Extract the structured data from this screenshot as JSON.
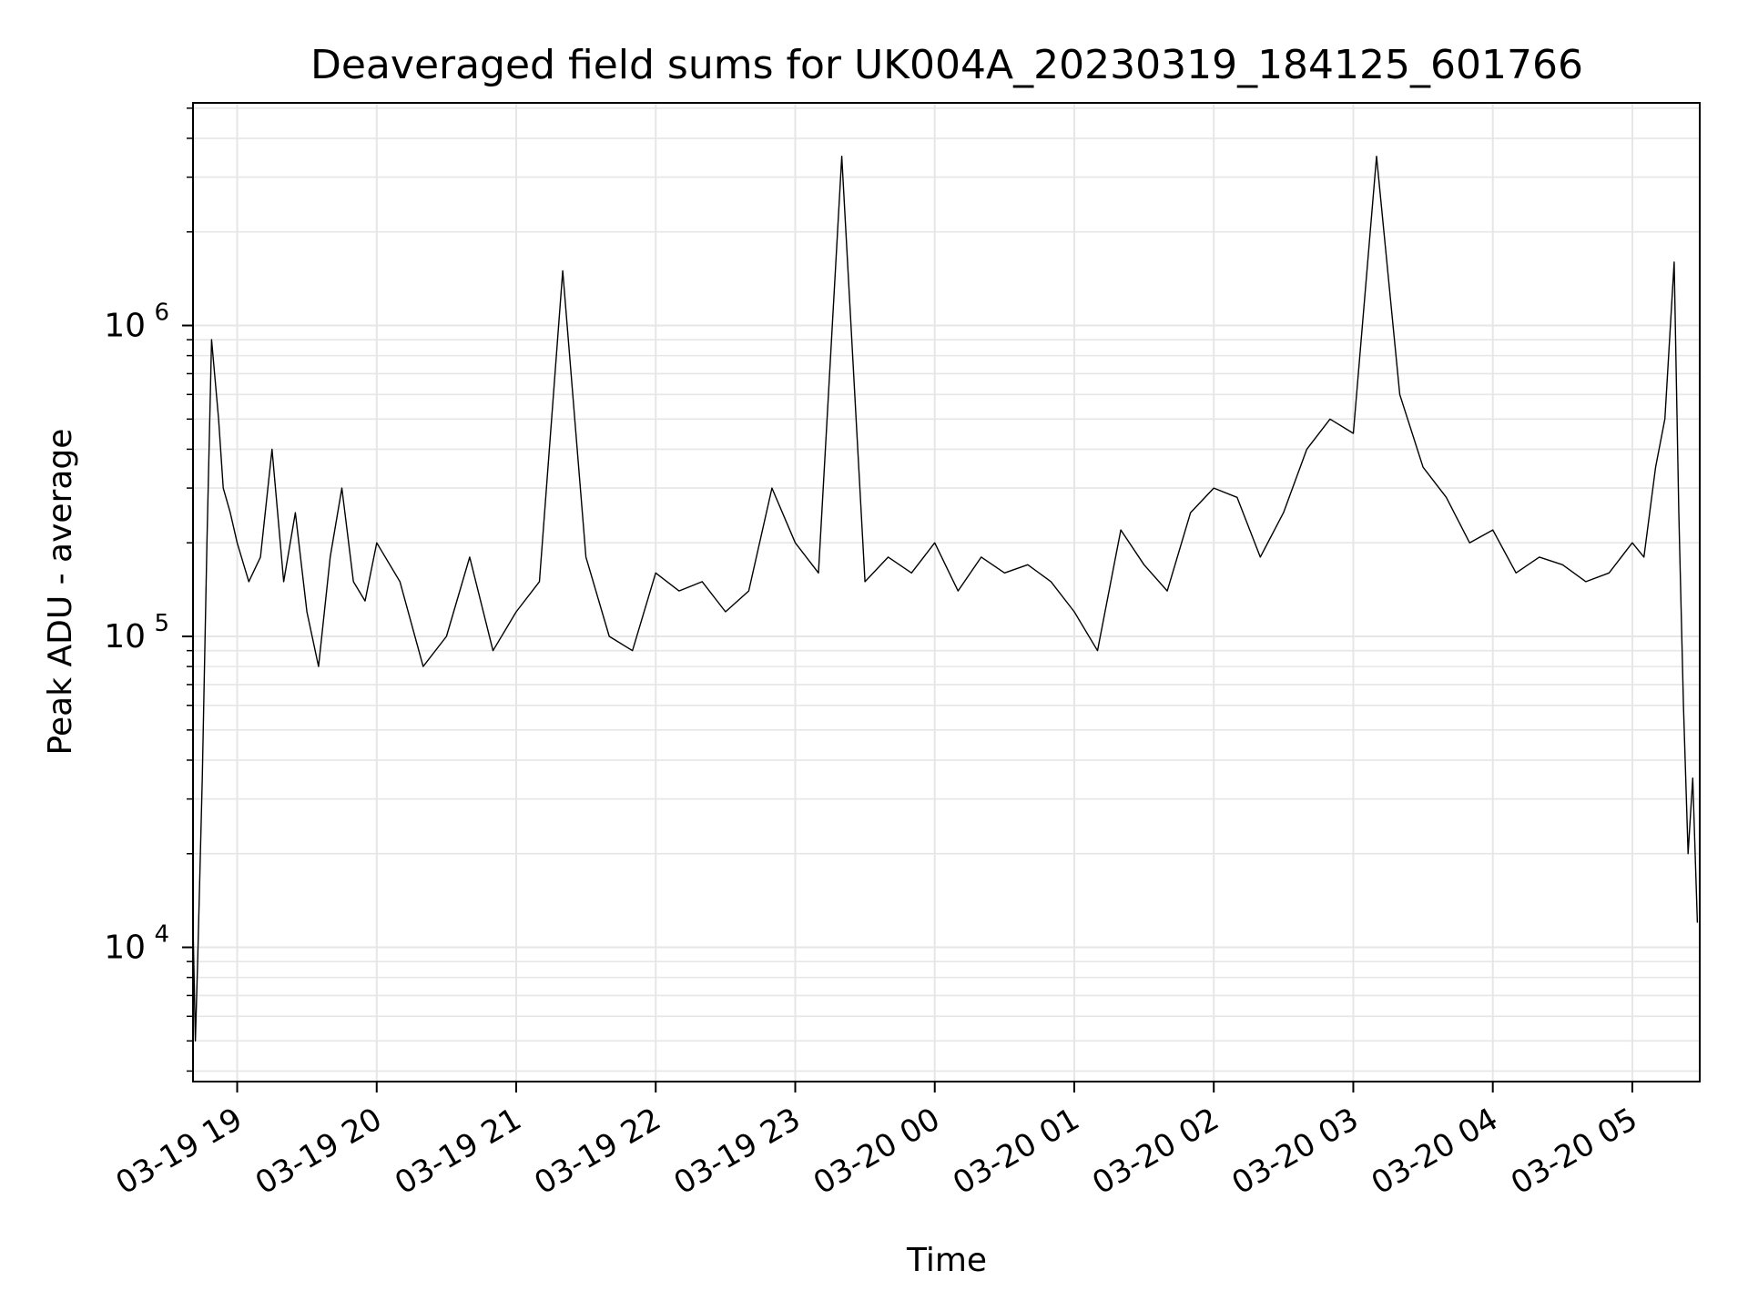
{
  "chart_data": {
    "type": "line",
    "title": "Deaveraged field sums for UK004A_20230319_184125_601766",
    "xlabel": "Time",
    "ylabel": "Peak ADU - average",
    "y_scale": "log",
    "ylim": [
      3700,
      5200000
    ],
    "xlim": [
      "2023-03-19 18:41",
      "2023-03-20 05:29"
    ],
    "grid": true,
    "line_color": "#000000",
    "grid_color": "#e6e6e6",
    "x_ticks": [
      "03-19 19",
      "03-19 20",
      "03-19 21",
      "03-19 22",
      "03-19 23",
      "03-20 00",
      "03-20 01",
      "03-20 02",
      "03-20 03",
      "03-20 04",
      "03-20 05"
    ],
    "x_tick_times": [
      "2023-03-19 19:00",
      "2023-03-19 20:00",
      "2023-03-19 21:00",
      "2023-03-19 22:00",
      "2023-03-19 23:00",
      "2023-03-20 00:00",
      "2023-03-20 01:00",
      "2023-03-20 02:00",
      "2023-03-20 03:00",
      "2023-03-20 04:00",
      "2023-03-20 05:00"
    ],
    "y_ticks": [
      {
        "value": 10000,
        "base": "10",
        "exp": "4"
      },
      {
        "value": 100000,
        "base": "10",
        "exp": "5"
      },
      {
        "value": 1000000,
        "base": "10",
        "exp": "6"
      }
    ],
    "series": [
      {
        "x": [
          "2023-03-19 18:41",
          "2023-03-19 18:42",
          "2023-03-19 18:43",
          "2023-03-19 18:45",
          "2023-03-19 18:47",
          "2023-03-19 18:49",
          "2023-03-19 18:52",
          "2023-03-19 18:54",
          "2023-03-19 18:57",
          "2023-03-19 19:00",
          "2023-03-19 19:05",
          "2023-03-19 19:10",
          "2023-03-19 19:15",
          "2023-03-19 19:20",
          "2023-03-19 19:25",
          "2023-03-19 19:30",
          "2023-03-19 19:35",
          "2023-03-19 19:40",
          "2023-03-19 19:45",
          "2023-03-19 19:50",
          "2023-03-19 19:55",
          "2023-03-19 20:00",
          "2023-03-19 20:10",
          "2023-03-19 20:20",
          "2023-03-19 20:30",
          "2023-03-19 20:40",
          "2023-03-19 20:50",
          "2023-03-19 21:00",
          "2023-03-19 21:10",
          "2023-03-19 21:20",
          "2023-03-19 21:30",
          "2023-03-19 21:40",
          "2023-03-19 21:50",
          "2023-03-19 22:00",
          "2023-03-19 22:10",
          "2023-03-19 22:20",
          "2023-03-19 22:30",
          "2023-03-19 22:40",
          "2023-03-19 22:50",
          "2023-03-19 23:00",
          "2023-03-19 23:10",
          "2023-03-19 23:20",
          "2023-03-19 23:30",
          "2023-03-19 23:40",
          "2023-03-19 23:50",
          "2023-03-20 00:00",
          "2023-03-20 00:10",
          "2023-03-20 00:20",
          "2023-03-20 00:30",
          "2023-03-20 00:40",
          "2023-03-20 00:50",
          "2023-03-20 01:00",
          "2023-03-20 01:10",
          "2023-03-20 01:20",
          "2023-03-20 01:30",
          "2023-03-20 01:40",
          "2023-03-20 01:50",
          "2023-03-20 02:00",
          "2023-03-20 02:10",
          "2023-03-20 02:20",
          "2023-03-20 02:30",
          "2023-03-20 02:40",
          "2023-03-20 02:50",
          "2023-03-20 03:00",
          "2023-03-20 03:10",
          "2023-03-20 03:20",
          "2023-03-20 03:30",
          "2023-03-20 03:40",
          "2023-03-20 03:50",
          "2023-03-20 04:00",
          "2023-03-20 04:10",
          "2023-03-20 04:20",
          "2023-03-20 04:30",
          "2023-03-20 04:40",
          "2023-03-20 04:50",
          "2023-03-20 05:00",
          "2023-03-20 05:05",
          "2023-03-20 05:10",
          "2023-03-20 05:14",
          "2023-03-20 05:18",
          "2023-03-20 05:20",
          "2023-03-20 05:22",
          "2023-03-20 05:24",
          "2023-03-20 05:26",
          "2023-03-20 05:28"
        ],
        "y": [
          12000,
          5000,
          9000,
          35000,
          200000,
          900000,
          500000,
          300000,
          250000,
          200000,
          150000,
          180000,
          400000,
          150000,
          250000,
          120000,
          80000,
          180000,
          300000,
          150000,
          130000,
          200000,
          150000,
          80000,
          100000,
          180000,
          90000,
          120000,
          150000,
          1500000,
          180000,
          100000,
          90000,
          160000,
          140000,
          150000,
          120000,
          140000,
          300000,
          200000,
          160000,
          3500000,
          150000,
          180000,
          160000,
          200000,
          140000,
          180000,
          160000,
          170000,
          150000,
          120000,
          90000,
          220000,
          170000,
          140000,
          250000,
          300000,
          280000,
          180000,
          250000,
          400000,
          500000,
          450000,
          3500000,
          600000,
          350000,
          280000,
          200000,
          220000,
          160000,
          180000,
          170000,
          150000,
          160000,
          200000,
          180000,
          350000,
          500000,
          1600000,
          250000,
          60000,
          20000,
          35000,
          12000
        ]
      }
    ]
  }
}
